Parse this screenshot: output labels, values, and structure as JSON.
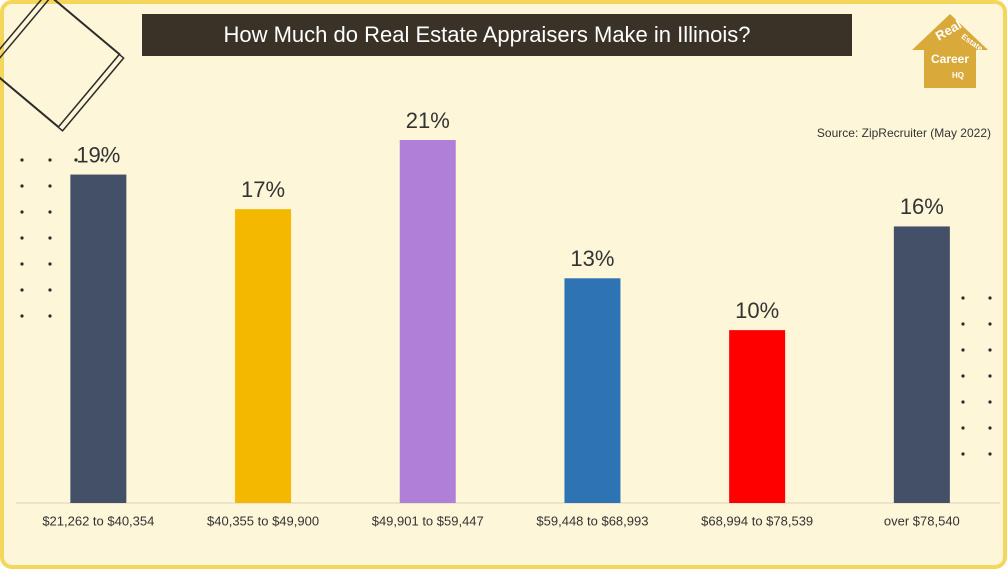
{
  "chart_data": {
    "type": "bar",
    "title": "How Much do Real Estate Appraisers Make in Illinois?",
    "source": "Source: ZipRecruiter (May 2022)",
    "logo": [
      "Real",
      "Estate",
      "Career",
      "HQ"
    ],
    "categories": [
      "$21,262 to $40,354",
      "$40,355 to $49,900",
      "$49,901 to $59,447",
      "$59,448 to $68,993",
      "$68,994 to $78,539",
      "over $78,540"
    ],
    "values": [
      19,
      17,
      21,
      13,
      10,
      16
    ],
    "value_labels": [
      "19%",
      "17%",
      "21%",
      "13%",
      "10%",
      "16%"
    ],
    "colors": [
      "#435068",
      "#f5b800",
      "#b07fd8",
      "#2e74b5",
      "#ff0000",
      "#435068"
    ]
  }
}
